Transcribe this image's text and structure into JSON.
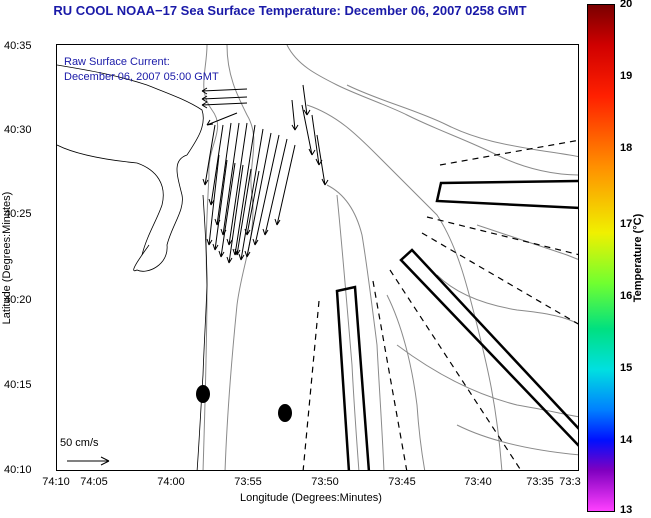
{
  "title": "RU COOL  NOAA−17  Sea Surface Temperature:  December 06, 2007 0258 GMT",
  "annotation": {
    "line1": "Raw Surface Current:",
    "line2": "December 06, 2007 05:00 GMT"
  },
  "x_axis": {
    "label": "Longitude (Degrees:Minutes)",
    "ticks": [
      "74:10",
      "74:05",
      "74:00",
      "73:55",
      "73:50",
      "73:45",
      "73:40",
      "73:35",
      "73:3"
    ]
  },
  "y_axis": {
    "label": "Latitude (Degrees:Minutes)",
    "ticks": [
      "40:35",
      "40:30",
      "40:25",
      "40:20",
      "40:15",
      "40:10"
    ]
  },
  "colorbar": {
    "label": "Temperature (°C)",
    "ticks": [
      "20",
      "19",
      "18",
      "17",
      "16",
      "15",
      "14",
      "13"
    ]
  },
  "scale_label": "50 cm/s",
  "colors": {
    "title": "#1a1aa8",
    "contour": "#8a8a8a",
    "vector": "#000000"
  }
}
